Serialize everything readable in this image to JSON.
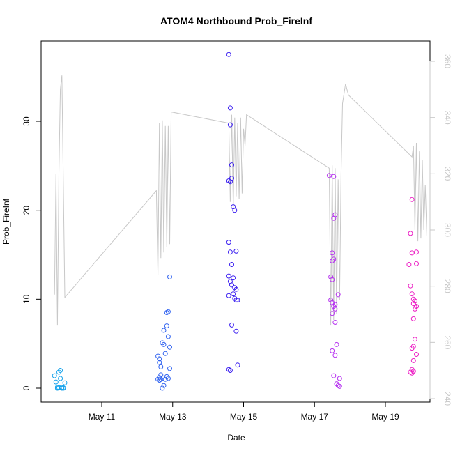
{
  "chart_data": {
    "type": "scatter",
    "title": "ATOM4 Northbound Prob_FireInf",
    "xlabel": "Date",
    "ylabel": "Prob_FireInf",
    "x_ticks": [
      "May 11",
      "May 13",
      "May 15",
      "May 17",
      "May 19"
    ],
    "y_ticks": [
      "0",
      "10",
      "20",
      "30"
    ],
    "y2_ticks": [
      "240",
      "260",
      "280",
      "300",
      "320",
      "340",
      "360"
    ],
    "ylim": [
      -1.5,
      39
    ],
    "y2lim": [
      240,
      362
    ],
    "colors": {
      "line": "#c8c8c8",
      "series": [
        "#18a4ec",
        "#2f62f0",
        "#3a1ef0",
        "#b632f0",
        "#ec1ec4"
      ]
    },
    "secondary_line": {
      "name": "",
      "axis": "right",
      "points": [
        [
          "May 09 16:00",
          277
        ],
        [
          "May 09 17:00",
          320
        ],
        [
          "May 09 18:00",
          266
        ],
        [
          "May 09 19:00",
          320
        ],
        [
          "May 09 20:00",
          350
        ],
        [
          "May 09 21:00",
          355
        ],
        [
          "May 09 23:00",
          276
        ],
        [
          "May 12 13:00",
          314
        ],
        [
          "May 12 14:00",
          284
        ],
        [
          "May 12 15:00",
          338
        ],
        [
          "May 12 16:00",
          290
        ],
        [
          "May 12 17:00",
          339
        ],
        [
          "May 12 18:00",
          292
        ],
        [
          "May 12 19:00",
          337
        ],
        [
          "May 12 20:00",
          294
        ],
        [
          "May 12 21:00",
          337
        ],
        [
          "May 12 22:00",
          295
        ],
        [
          "May 12 23:00",
          342
        ],
        [
          "May 14 14:00",
          338
        ],
        [
          "May 14 15:00",
          310
        ],
        [
          "May 14 16:00",
          341
        ],
        [
          "May 14 17:00",
          308
        ],
        [
          "May 14 18:00",
          340
        ],
        [
          "May 14 19:00",
          312
        ],
        [
          "May 14 20:00",
          338
        ],
        [
          "May 14 21:00",
          311
        ],
        [
          "May 14 22:00",
          340
        ],
        [
          "May 14 23:00",
          313
        ],
        [
          "May 15 00:00",
          336
        ],
        [
          "May 15 01:00",
          330
        ],
        [
          "May 15 02:00",
          341
        ],
        [
          "May 17 10:00",
          322
        ],
        [
          "May 17 11:00",
          266
        ],
        [
          "May 17 12:00",
          323
        ],
        [
          "May 17 13:00",
          268
        ],
        [
          "May 17 14:00",
          322
        ],
        [
          "May 17 15:00",
          270
        ],
        [
          "May 17 16:00",
          318
        ],
        [
          "May 17 17:00",
          275
        ],
        [
          "May 17 18:00",
          320
        ],
        [
          "May 17 19:00",
          345
        ],
        [
          "May 17 21:00",
          352
        ],
        [
          "May 17 23:00",
          348
        ],
        [
          "May 19 18:00",
          326
        ],
        [
          "May 19 19:00",
          330
        ],
        [
          "May 19 20:00",
          300
        ],
        [
          "May 19 21:00",
          331
        ],
        [
          "May 19 22:00",
          296
        ],
        [
          "May 19 23:00",
          328
        ],
        [
          "May 20 00:00",
          297
        ],
        [
          "May 20 01:00",
          325
        ],
        [
          "May 20 02:00",
          300
        ],
        [
          "May 20 03:00",
          316
        ],
        [
          "May 20 04:00",
          298
        ]
      ]
    },
    "series": [
      {
        "color": "#18a4ec",
        "points": [
          [
            "May 09 16:00",
            1.4
          ],
          [
            "May 09 17:00",
            0.7
          ],
          [
            "May 09 18:00",
            0.1
          ],
          [
            "May 09 19:00",
            1.8
          ],
          [
            "May 09 20:00",
            1.1
          ],
          [
            "May 09 21:00",
            0.0
          ],
          [
            "May 09 22:00",
            0.05
          ],
          [
            "May 09 23:00",
            0.6
          ],
          [
            "May 09 20:00",
            2.0
          ],
          [
            "May 09 22:00",
            0.0
          ],
          [
            "May 09 21:00",
            0.1
          ],
          [
            "May 09 18:00",
            0.0
          ],
          [
            "May 09 19:00",
            0.05
          ]
        ]
      },
      {
        "color": "#2f62f0",
        "points": [
          [
            "May 12 14:00",
            3.6
          ],
          [
            "May 12 15:00",
            3.3
          ],
          [
            "May 12 15:00",
            2.9
          ],
          [
            "May 12 16:00",
            2.4
          ],
          [
            "May 12 17:00",
            5.1
          ],
          [
            "May 12 18:00",
            4.9
          ],
          [
            "May 12 18:00",
            6.5
          ],
          [
            "May 12 19:00",
            3.9
          ],
          [
            "May 12 20:00",
            8.5
          ],
          [
            "May 12 21:00",
            8.6
          ],
          [
            "May 12 20:00",
            7.0
          ],
          [
            "May 12 21:00",
            5.8
          ],
          [
            "May 12 22:00",
            4.6
          ],
          [
            "May 12 22:00",
            12.5
          ],
          [
            "May 12 22:00",
            2.2
          ],
          [
            "May 12 14:00",
            1.0
          ],
          [
            "May 12 15:00",
            1.2
          ],
          [
            "May 12 16:00",
            1.5
          ],
          [
            "May 12 17:00",
            0.0
          ],
          [
            "May 12 18:00",
            0.3
          ],
          [
            "May 12 19:00",
            1.0
          ],
          [
            "May 12 20:00",
            1.3
          ],
          [
            "May 12 21:00",
            1.1
          ],
          [
            "May 12 16:00",
            1.0
          ],
          [
            "May 12 15:00",
            0.9
          ]
        ]
      },
      {
        "color": "#3a1ef0",
        "points": [
          [
            "May 14 14:00",
            37.5
          ],
          [
            "May 14 15:00",
            31.5
          ],
          [
            "May 14 15:00",
            29.6
          ],
          [
            "May 14 16:00",
            25.1
          ],
          [
            "May 14 14:00",
            23.3
          ],
          [
            "May 14 15:00",
            23.2
          ],
          [
            "May 14 16:00",
            23.6
          ],
          [
            "May 14 17:00",
            20.4
          ],
          [
            "May 14 18:00",
            20.0
          ],
          [
            "May 14 14:00",
            16.4
          ],
          [
            "May 14 15:00",
            15.3
          ],
          [
            "May 14 19:00",
            15.4
          ],
          [
            "May 14 16:00",
            13.9
          ],
          [
            "May 14 14:00",
            12.6
          ],
          [
            "May 14 17:00",
            12.4
          ],
          [
            "May 14 15:00",
            12.0
          ],
          [
            "May 14 16:00",
            11.6
          ],
          [
            "May 14 18:00",
            11.3
          ],
          [
            "May 14 19:00",
            11.1
          ],
          [
            "May 14 14:00",
            10.4
          ],
          [
            "May 14 17:00",
            10.6
          ],
          [
            "May 14 18:00",
            10.1
          ],
          [
            "May 14 19:00",
            9.9
          ],
          [
            "May 14 20:00",
            9.9
          ],
          [
            "May 14 16:00",
            7.1
          ],
          [
            "May 14 19:00",
            6.4
          ],
          [
            "May 14 14:00",
            2.1
          ],
          [
            "May 14 15:00",
            2.0
          ],
          [
            "May 14 20:00",
            2.6
          ]
        ]
      },
      {
        "color": "#b632f0",
        "points": [
          [
            "May 17 10:00",
            23.9
          ],
          [
            "May 17 13:00",
            23.8
          ],
          [
            "May 17 14:00",
            19.5
          ],
          [
            "May 17 13:00",
            19.1
          ],
          [
            "May 17 12:00",
            15.2
          ],
          [
            "May 17 13:00",
            14.5
          ],
          [
            "May 17 12:00",
            14.3
          ],
          [
            "May 17 11:00",
            12.5
          ],
          [
            "May 17 12:00",
            12.2
          ],
          [
            "May 17 16:00",
            10.5
          ],
          [
            "May 17 11:00",
            9.9
          ],
          [
            "May 17 12:00",
            9.6
          ],
          [
            "May 17 14:00",
            9.4
          ],
          [
            "May 17 13:00",
            9.2
          ],
          [
            "May 17 14:00",
            8.9
          ],
          [
            "May 17 12:00",
            8.4
          ],
          [
            "May 17 14:00",
            7.4
          ],
          [
            "May 17 15:00",
            4.9
          ],
          [
            "May 17 12:00",
            4.2
          ],
          [
            "May 17 14:00",
            3.7
          ],
          [
            "May 17 13:00",
            1.4
          ],
          [
            "May 17 17:00",
            1.1
          ],
          [
            "May 17 15:00",
            0.5
          ],
          [
            "May 17 16:00",
            0.3
          ],
          [
            "May 17 17:00",
            0.2
          ]
        ]
      },
      {
        "color": "#ec1ec4",
        "points": [
          [
            "May 19 18:00",
            21.2
          ],
          [
            "May 19 17:00",
            17.4
          ],
          [
            "May 19 18:00",
            15.2
          ],
          [
            "May 19 21:00",
            15.3
          ],
          [
            "May 19 16:00",
            13.9
          ],
          [
            "May 19 21:00",
            14.0
          ],
          [
            "May 19 17:00",
            11.5
          ],
          [
            "May 19 18:00",
            10.6
          ],
          [
            "May 19 19:00",
            10.0
          ],
          [
            "May 19 20:00",
            9.8
          ],
          [
            "May 19 19:00",
            9.5
          ],
          [
            "May 19 20:00",
            9.1
          ],
          [
            "May 19 21:00",
            9.2
          ],
          [
            "May 19 20:00",
            8.9
          ],
          [
            "May 19 19:00",
            7.8
          ],
          [
            "May 19 20:00",
            5.5
          ],
          [
            "May 19 19:00",
            4.7
          ],
          [
            "May 19 18:00",
            4.5
          ],
          [
            "May 19 21:00",
            3.8
          ],
          [
            "May 19 19:00",
            3.1
          ],
          [
            "May 19 18:00",
            2.1
          ],
          [
            "May 19 17:00",
            1.8
          ],
          [
            "May 19 18:00",
            1.7
          ],
          [
            "May 19 19:00",
            1.9
          ]
        ]
      }
    ]
  }
}
